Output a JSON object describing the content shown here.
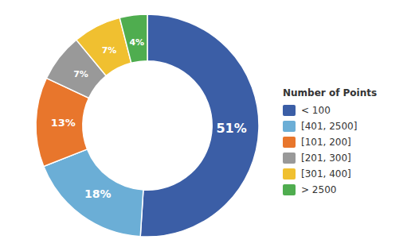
{
  "chart_data": {
    "type": "pie",
    "categories": [
      "< 100",
      "[401, 2500]",
      "[101, 200]",
      "[201, 300]",
      "[301, 400]",
      "> 2500"
    ],
    "values": [
      51,
      18,
      13,
      7,
      7,
      4
    ],
    "value_labels": [
      "51%",
      "18%",
      "13%",
      "7%",
      "7%",
      "4%"
    ],
    "colors": [
      "#3B5EA6",
      "#6BAED6",
      "#E8762C",
      "#999999",
      "#F0C030",
      "#4FAD4F"
    ],
    "data_labels": true,
    "legend": "right",
    "legend_title": "Number of Points"
  }
}
